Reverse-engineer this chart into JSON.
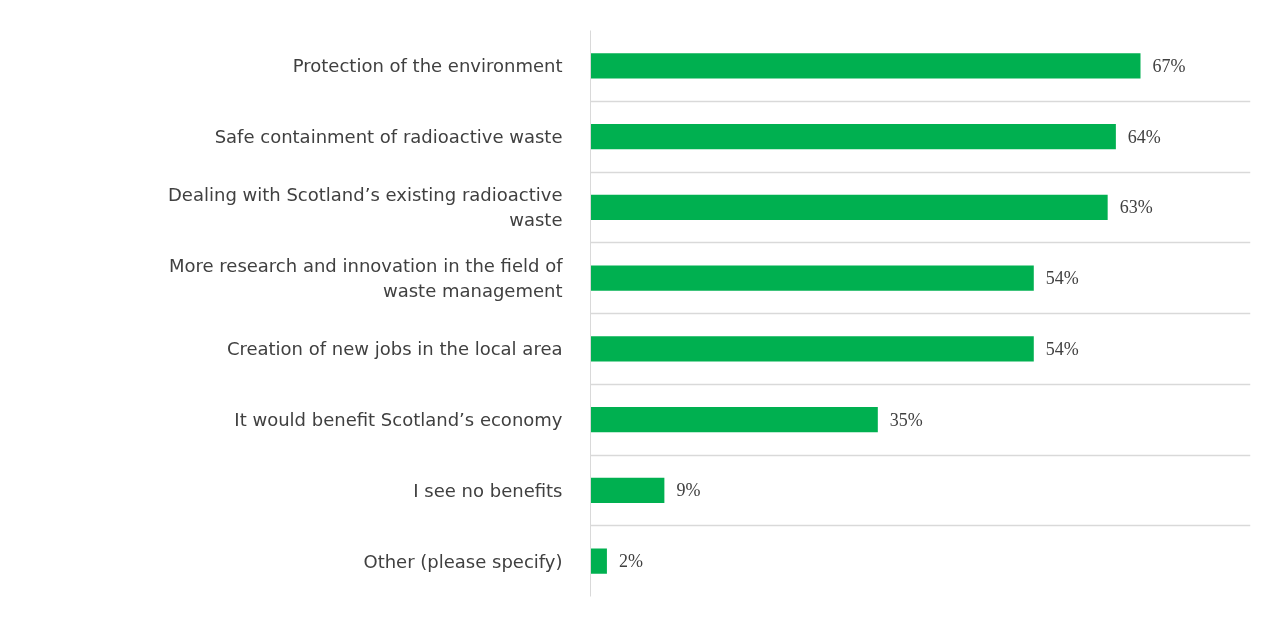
{
  "chart_data": {
    "type": "bar",
    "orientation": "horizontal",
    "categories": [
      "Protection of the environment",
      "Safe containment of radioactive waste",
      "Dealing with Scotland’s existing radioactive waste",
      "More research and innovation in the field of waste management",
      "Creation of new jobs in the local area",
      "It would benefit Scotland’s economy",
      "I see no benefits",
      "Other (please specify)"
    ],
    "values": [
      67,
      64,
      63,
      54,
      54,
      35,
      9,
      2
    ],
    "value_labels": [
      "67%",
      "64%",
      "63%",
      "54%",
      "54%",
      "35%",
      "9%",
      "2%"
    ],
    "color": "#00b050",
    "grid": "y"
  }
}
